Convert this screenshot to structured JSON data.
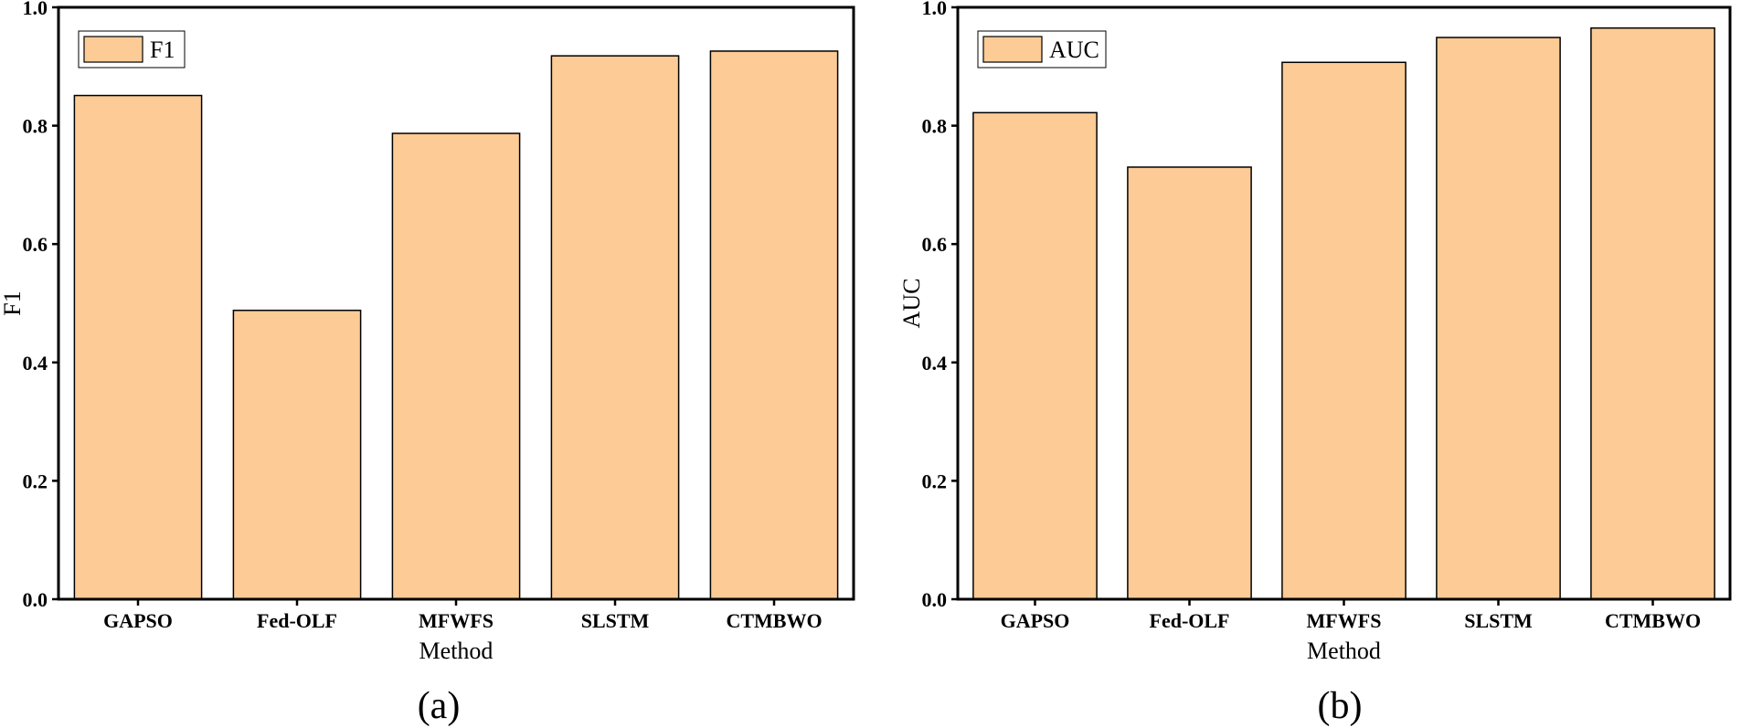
{
  "chart_data": [
    {
      "type": "bar",
      "categories": [
        "GAPSO",
        "Fed-OLF",
        "MFWFS",
        "SLSTM",
        "CTMBWO"
      ],
      "series": [
        {
          "name": "F1",
          "values": [
            0.851,
            0.488,
            0.787,
            0.918,
            0.926
          ]
        }
      ],
      "xlabel": "Method",
      "ylabel": "F1",
      "ylim": [
        0,
        1.0
      ],
      "yticks": [
        "0.0",
        "0.2",
        "0.4",
        "0.6",
        "0.8",
        "1.0"
      ],
      "legend": {
        "label": "F1",
        "placement": "top-left"
      },
      "panel_label": "(a)",
      "grid": false,
      "bar_color": "#FCCB96",
      "edge_color": "#000000"
    },
    {
      "type": "bar",
      "categories": [
        "GAPSO",
        "Fed-OLF",
        "MFWFS",
        "SLSTM",
        "CTMBWO"
      ],
      "series": [
        {
          "name": "AUC",
          "values": [
            0.822,
            0.73,
            0.907,
            0.949,
            0.965
          ]
        }
      ],
      "xlabel": "Method",
      "ylabel": "AUC",
      "ylim": [
        0,
        1.0
      ],
      "yticks": [
        "0.0",
        "0.2",
        "0.4",
        "0.6",
        "0.8",
        "1.0"
      ],
      "legend": {
        "label": "AUC",
        "placement": "top-left"
      },
      "panel_label": "(b)",
      "grid": false,
      "bar_color": "#FCCB96",
      "edge_color": "#000000"
    }
  ]
}
